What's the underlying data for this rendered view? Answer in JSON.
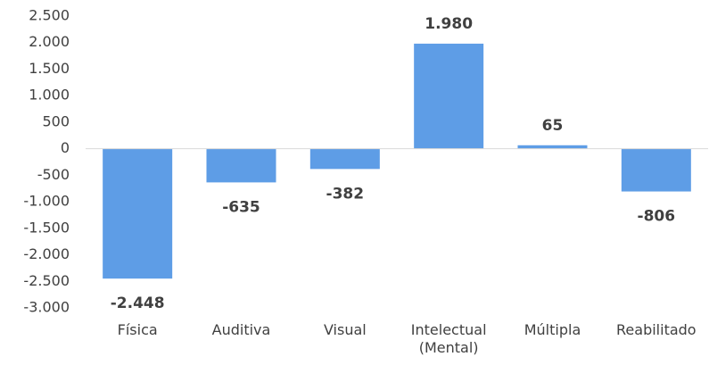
{
  "chart_data": {
    "type": "bar",
    "categories": [
      "Física",
      "Auditiva",
      "Visual",
      "Intelectual (Mental)",
      "Múltipla",
      "Reabilitado"
    ],
    "values": [
      -2448,
      -635,
      -382,
      1980,
      65,
      -806
    ],
    "value_labels": [
      "-2.448",
      "-635",
      "-382",
      "1.980",
      "65",
      "-806"
    ],
    "color": "#5e9de6",
    "ylim": [
      -3000,
      2500
    ],
    "yticks": [
      {
        "value": -3000,
        "label": "-3.000"
      },
      {
        "value": -2500,
        "label": "-2.500"
      },
      {
        "value": -2000,
        "label": "-2.000"
      },
      {
        "value": -1500,
        "label": "-1.500"
      },
      {
        "value": -1000,
        "label": "-1.000"
      },
      -500,
      0,
      500,
      {
        "value": 1000,
        "label": "1.000"
      },
      {
        "value": 1500,
        "label": "1.500"
      },
      {
        "value": 2000,
        "label": "2.000"
      },
      {
        "value": 2500,
        "label": "2.500"
      }
    ],
    "grid": false
  }
}
